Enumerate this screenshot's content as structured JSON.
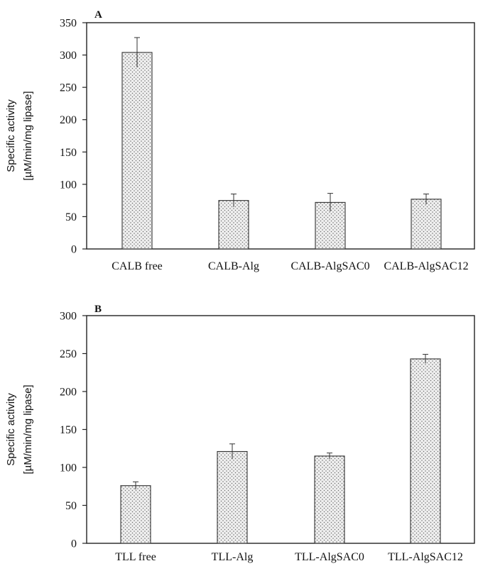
{
  "chart_data": [
    {
      "type": "bar",
      "panel": "A",
      "categories": [
        "CALB free",
        "CALB-Alg",
        "CALB-AlgSAC0",
        "CALB-AlgSAC12"
      ],
      "values": [
        304,
        75,
        72,
        77
      ],
      "errors": [
        23,
        10,
        14,
        8
      ],
      "ylabel_lines": [
        "Specific activity",
        "[µM/min/mg lipase]"
      ],
      "ylim": [
        0,
        350
      ],
      "yticks": [
        0,
        50,
        100,
        150,
        200,
        250,
        300,
        350
      ],
      "grid": false,
      "legend": "none"
    },
    {
      "type": "bar",
      "panel": "B",
      "categories": [
        "TLL free",
        "TLL-Alg",
        "TLL-AlgSAC0",
        "TLL-AlgSAC12"
      ],
      "values": [
        76,
        121,
        115,
        243
      ],
      "errors": [
        5,
        10,
        4,
        6
      ],
      "ylabel_lines": [
        "Specific activity",
        "[µM/min/mg lipase]"
      ],
      "ylim": [
        0,
        300
      ],
      "yticks": [
        0,
        50,
        100,
        150,
        200,
        250,
        300
      ],
      "grid": false,
      "legend": "none"
    }
  ],
  "colors": {
    "bar_fill": "#efefef",
    "bar_dots": "#6b6b6b",
    "axis": "#222222"
  }
}
